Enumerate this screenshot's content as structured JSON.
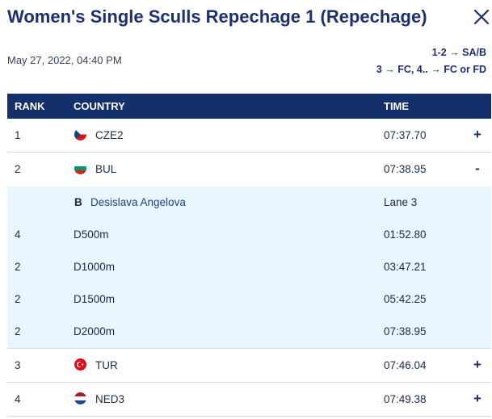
{
  "header": {
    "title": "Women's Single Sculls Repechage 1 (Repechage)",
    "datetime": "May 27, 2022, 04:40 PM",
    "progression_line1": "1-2 → SA/B",
    "progression_line2": "3 → FC, 4.. → FC or FD"
  },
  "table": {
    "headers": {
      "rank": "RANK",
      "country": "COUNTRY",
      "time": "TIME"
    },
    "rows": [
      {
        "rank": "1",
        "country": "CZE2",
        "time": "07:37.70",
        "toggle": "+",
        "flag": "cze"
      },
      {
        "rank": "2",
        "country": "BUL",
        "time": "07:38.95",
        "toggle": "-",
        "flag": "bul"
      },
      {
        "rank": "3",
        "country": "TUR",
        "time": "07:46.04",
        "toggle": "+",
        "flag": "tur"
      },
      {
        "rank": "4",
        "country": "NED3",
        "time": "07:49.38",
        "toggle": "+",
        "flag": "ned"
      }
    ],
    "expanded": {
      "seat": "B",
      "athlete": "Desislava Angelova",
      "lane": "Lane 3",
      "splits": [
        {
          "rank": "4",
          "distance": "D500m",
          "time": "01:52.80"
        },
        {
          "rank": "2",
          "distance": "D1000m",
          "time": "03:47.21"
        },
        {
          "rank": "2",
          "distance": "D1500m",
          "time": "05:42.25"
        },
        {
          "rank": "2",
          "distance": "D2000m",
          "time": "07:38.95"
        }
      ]
    }
  },
  "colors": {
    "navy": "#13306b",
    "title": "#1e2f6e",
    "detail_bg": "#eaf6fd"
  },
  "icons": {
    "close": "close-icon",
    "expand": "plus-icon",
    "collapse": "minus-icon"
  }
}
